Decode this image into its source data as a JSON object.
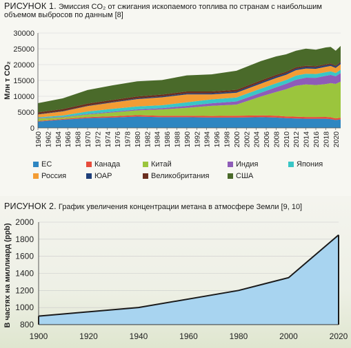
{
  "figure1": {
    "title_prefix": "РИСУНОК 1.",
    "title_text": "Эмиссия CO₂ от сжигания ископаемого топлива по странам с наибольшим объемом выбросов по данным [8]"
  },
  "figure2": {
    "title_prefix": "РИСУНОК 2.",
    "title_text": "График увеличения концентрации метана в атмосфере Земли [9, 10]"
  },
  "chart_data": [
    {
      "type": "area",
      "stacked": true,
      "ylabel": "Млн т CO₂",
      "ylim": [
        0,
        30000
      ],
      "yticks": [
        0,
        5000,
        10000,
        15000,
        20000,
        25000,
        30000
      ],
      "xticks": [
        1960,
        1962,
        1964,
        1966,
        1968,
        1970,
        1972,
        1974,
        1976,
        1978,
        1980,
        1982,
        1984,
        1986,
        1988,
        1990,
        1992,
        1994,
        1996,
        1998,
        2000,
        2002,
        2004,
        2006,
        2008,
        2010,
        2012,
        2014,
        2016,
        2018,
        2020
      ],
      "x": [
        1960,
        1965,
        1970,
        1975,
        1980,
        1985,
        1990,
        1995,
        2000,
        2005,
        2008,
        2010,
        2012,
        2014,
        2016,
        2018,
        2019,
        2020,
        2021
      ],
      "series": [
        {
          "name": "ЕС",
          "color": "#2e86c1",
          "values": [
            2000,
            2600,
            3100,
            3300,
            3600,
            3400,
            3400,
            3300,
            3300,
            3400,
            3300,
            3100,
            3000,
            2900,
            2900,
            2900,
            2800,
            2500,
            2700
          ]
        },
        {
          "name": "Канада",
          "color": "#e74c3c",
          "values": [
            200,
            250,
            330,
            400,
            450,
            430,
            460,
            490,
            560,
            570,
            560,
            540,
            550,
            560,
            550,
            570,
            570,
            520,
            540
          ]
        },
        {
          "name": "Китай",
          "color": "#9bc53d",
          "values": [
            800,
            500,
            800,
            1200,
            1500,
            2000,
            2500,
            3200,
            3500,
            6000,
            7500,
            8600,
            9800,
            10300,
            10100,
            10400,
            10800,
            10900,
            11400
          ]
        },
        {
          "name": "Индия",
          "color": "#8e5cb8",
          "values": [
            120,
            160,
            190,
            240,
            300,
            420,
            600,
            800,
            1000,
            1200,
            1500,
            1700,
            1900,
            2100,
            2300,
            2600,
            2600,
            2400,
            2700
          ]
        },
        {
          "name": "Япония",
          "color": "#39c6c6",
          "values": [
            230,
            400,
            770,
            900,
            950,
            920,
            1150,
            1220,
            1260,
            1290,
            1230,
            1200,
            1300,
            1260,
            1200,
            1150,
            1120,
            1040,
            1070
          ]
        },
        {
          "name": "Россия",
          "color": "#f39c34",
          "values": [
            900,
            1300,
            1700,
            2000,
            2300,
            2500,
            2500,
            1600,
            1500,
            1600,
            1700,
            1650,
            1700,
            1650,
            1650,
            1700,
            1700,
            1600,
            1750
          ]
        },
        {
          "name": "ЮАР",
          "color": "#1f3f7a",
          "values": [
            100,
            120,
            150,
            200,
            250,
            300,
            320,
            350,
            380,
            430,
            470,
            460,
            450,
            460,
            450,
            450,
            450,
            430,
            430
          ]
        },
        {
          "name": "Великобритания",
          "color": "#6b2e1f",
          "values": [
            580,
            620,
            650,
            600,
            590,
            560,
            580,
            560,
            560,
            570,
            540,
            500,
            490,
            430,
            390,
            370,
            360,
            320,
            340
          ]
        },
        {
          "name": "США",
          "color": "#4a6a2a",
          "values": [
            2900,
            3400,
            4300,
            4600,
            4800,
            4600,
            5100,
            5400,
            6000,
            6100,
            5800,
            5500,
            5200,
            5400,
            5200,
            5300,
            5200,
            4700,
            5000
          ]
        }
      ]
    },
    {
      "type": "area",
      "ylabel": "В частях на миллиард (ppb)",
      "ylim": [
        800,
        2000
      ],
      "xlim": [
        1900,
        2020
      ],
      "yticks": [
        800,
        1000,
        1200,
        1400,
        1600,
        1800,
        2000
      ],
      "xticks": [
        1900,
        1920,
        1940,
        1960,
        1980,
        2000,
        2020
      ],
      "x": [
        1900,
        1940,
        1980,
        2000,
        2020
      ],
      "values": [
        900,
        1000,
        1200,
        1350,
        1850
      ],
      "fill": "#a8d4f0",
      "stroke": "#1a1a1a"
    }
  ]
}
